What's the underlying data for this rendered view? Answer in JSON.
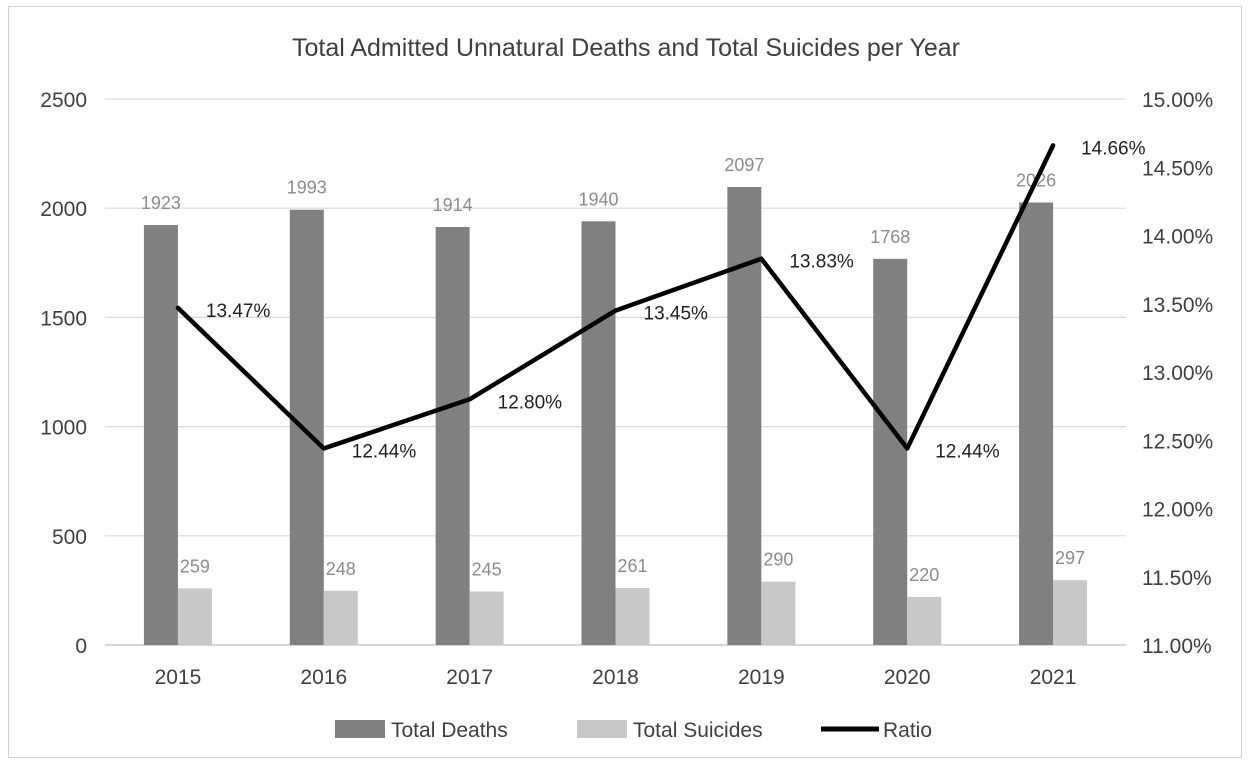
{
  "chart_data": {
    "type": "bar",
    "title": "Total Admitted Unnatural  Deaths and Total Suicides per Year",
    "categories": [
      "2015",
      "2016",
      "2017",
      "2018",
      "2019",
      "2020",
      "2021"
    ],
    "series": [
      {
        "name": "Total Deaths",
        "type": "bar",
        "axis": "left",
        "color": "#808080",
        "values": [
          1923,
          1993,
          1914,
          1940,
          2097,
          1768,
          2026
        ]
      },
      {
        "name": "Total Suicides",
        "type": "bar",
        "axis": "left",
        "color": "#c8c8c8",
        "values": [
          259,
          248,
          245,
          261,
          290,
          220,
          297
        ]
      },
      {
        "name": "Ratio",
        "type": "line",
        "axis": "right",
        "color": "#000000",
        "values": [
          13.47,
          12.44,
          12.8,
          13.45,
          13.83,
          12.44,
          14.66
        ],
        "labels": [
          "13.47%",
          "12.44%",
          "12.80%",
          "13.45%",
          "13.83%",
          "12.44%",
          "14.66%"
        ]
      }
    ],
    "ylim_left": [
      0,
      2500
    ],
    "yticks_left": [
      "0",
      "500",
      "1000",
      "1500",
      "2000",
      "2500"
    ],
    "ylim_right": [
      11.0,
      15.0
    ],
    "yticks_right": [
      "11.00%",
      "11.50%",
      "12.00%",
      "12.50%",
      "13.00%",
      "13.50%",
      "14.00%",
      "14.50%",
      "15.00%"
    ],
    "legend": [
      "Total Deaths",
      "Total Suicides",
      "Ratio"
    ],
    "legend_position": "bottom",
    "grid": true,
    "colors": {
      "deaths": "#808080",
      "suicides": "#c8c8c8",
      "ratio": "#000000",
      "grid": "#d9d9d9",
      "text": "#404040",
      "bar_label": "#8c8c8c"
    }
  }
}
